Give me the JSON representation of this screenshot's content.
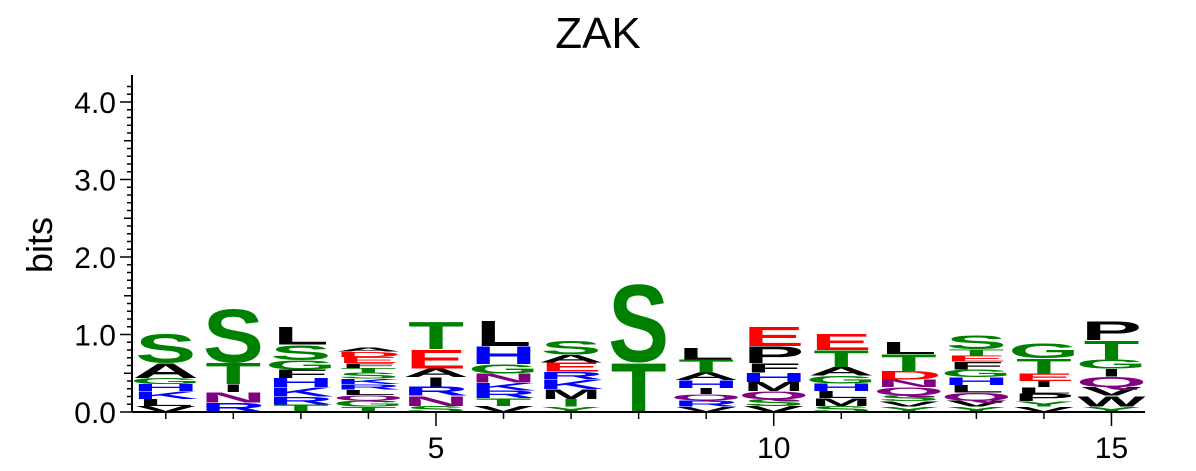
{
  "chart_data": {
    "type": "sequence-logo",
    "title": "ZAK",
    "ylabel": "bits",
    "xlabel": "",
    "ylim": [
      0,
      4.3
    ],
    "xlim": [
      0.5,
      15.5
    ],
    "y_ticks": [
      {
        "value": 0.0,
        "label": "0.0"
      },
      {
        "value": 1.0,
        "label": "1.0"
      },
      {
        "value": 2.0,
        "label": "2.0"
      },
      {
        "value": 3.0,
        "label": "3.0"
      },
      {
        "value": 4.0,
        "label": "4.0"
      }
    ],
    "x_ticks": [
      {
        "value": 5,
        "label": "5"
      },
      {
        "value": 10,
        "label": "10"
      },
      {
        "value": 15,
        "label": "15"
      }
    ],
    "colors": {
      "green": "#008000",
      "black": "#000000",
      "blue": "#0000ff",
      "red": "#ff0000",
      "purple": "#800080"
    },
    "positions": [
      {
        "position": 1,
        "letters": [
          {
            "letter": "V",
            "height": 0.08,
            "color": "black"
          },
          {
            "letter": "L",
            "height": 0.09,
            "color": "black"
          },
          {
            "letter": "K",
            "height": 0.1,
            "color": "blue"
          },
          {
            "letter": "H",
            "height": 0.09,
            "color": "blue"
          },
          {
            "letter": "G",
            "height": 0.08,
            "color": "green"
          },
          {
            "letter": "A",
            "height": 0.2,
            "color": "black"
          },
          {
            "letter": "S",
            "height": 0.38,
            "color": "green"
          }
        ]
      },
      {
        "position": 2,
        "letters": [
          {
            "letter": "R",
            "height": 0.12,
            "color": "blue"
          },
          {
            "letter": "N",
            "height": 0.14,
            "color": "purple"
          },
          {
            "letter": "I",
            "height": 0.1,
            "color": "black"
          },
          {
            "letter": "T",
            "height": 0.28,
            "color": "green"
          },
          {
            "letter": "S",
            "height": 0.7,
            "color": "green"
          }
        ]
      },
      {
        "position": 3,
        "letters": [
          {
            "letter": "T",
            "height": 0.1,
            "color": "green"
          },
          {
            "letter": "R",
            "height": 0.1,
            "color": "blue"
          },
          {
            "letter": "K",
            "height": 0.12,
            "color": "blue"
          },
          {
            "letter": "H",
            "height": 0.12,
            "color": "blue"
          },
          {
            "letter": "F",
            "height": 0.11,
            "color": "black"
          },
          {
            "letter": "G",
            "height": 0.12,
            "color": "green"
          },
          {
            "letter": "S",
            "height": 0.2,
            "color": "green"
          },
          {
            "letter": "L",
            "height": 0.23,
            "color": "black"
          }
        ]
      },
      {
        "position": 4,
        "letters": [
          {
            "letter": "T",
            "height": 0.07,
            "color": "green"
          },
          {
            "letter": "G",
            "height": 0.08,
            "color": "green"
          },
          {
            "letter": "Q",
            "height": 0.07,
            "color": "purple"
          },
          {
            "letter": "L",
            "height": 0.07,
            "color": "black"
          },
          {
            "letter": "R",
            "height": 0.07,
            "color": "blue"
          },
          {
            "letter": "K",
            "height": 0.07,
            "color": "blue"
          },
          {
            "letter": "S",
            "height": 0.08,
            "color": "green"
          },
          {
            "letter": "T",
            "height": 0.06,
            "color": "green"
          },
          {
            "letter": "F",
            "height": 0.06,
            "color": "black"
          },
          {
            "letter": "E",
            "height": 0.08,
            "color": "red"
          },
          {
            "letter": "D",
            "height": 0.07,
            "color": "red"
          },
          {
            "letter": "A",
            "height": 0.05,
            "color": "black"
          }
        ]
      },
      {
        "position": 5,
        "letters": [
          {
            "letter": "S",
            "height": 0.08,
            "color": "green"
          },
          {
            "letter": "N",
            "height": 0.13,
            "color": "purple"
          },
          {
            "letter": "R",
            "height": 0.12,
            "color": "blue"
          },
          {
            "letter": "I",
            "height": 0.12,
            "color": "black"
          },
          {
            "letter": "A",
            "height": 0.11,
            "color": "black"
          },
          {
            "letter": "E",
            "height": 0.25,
            "color": "red"
          },
          {
            "letter": "T",
            "height": 0.36,
            "color": "green"
          }
        ]
      },
      {
        "position": 6,
        "letters": [
          {
            "letter": "V",
            "height": 0.08,
            "color": "black"
          },
          {
            "letter": "T",
            "height": 0.1,
            "color": "green"
          },
          {
            "letter": "R",
            "height": 0.1,
            "color": "blue"
          },
          {
            "letter": "K",
            "height": 0.1,
            "color": "blue"
          },
          {
            "letter": "N",
            "height": 0.12,
            "color": "purple"
          },
          {
            "letter": "G",
            "height": 0.12,
            "color": "green"
          },
          {
            "letter": "H",
            "height": 0.23,
            "color": "blue"
          },
          {
            "letter": "L",
            "height": 0.33,
            "color": "black"
          }
        ]
      },
      {
        "position": 7,
        "letters": [
          {
            "letter": "Y",
            "height": 0.07,
            "color": "green"
          },
          {
            "letter": "I",
            "height": 0.1,
            "color": "green"
          },
          {
            "letter": "M",
            "height": 0.13,
            "color": "black"
          },
          {
            "letter": "K",
            "height": 0.12,
            "color": "blue"
          },
          {
            "letter": "R",
            "height": 0.1,
            "color": "blue"
          },
          {
            "letter": "E",
            "height": 0.12,
            "color": "red"
          },
          {
            "letter": "A",
            "height": 0.1,
            "color": "black"
          },
          {
            "letter": "S",
            "height": 0.18,
            "color": "green"
          }
        ]
      },
      {
        "position": 8,
        "letters": [
          {
            "letter": "T",
            "height": 0.65,
            "color": "green"
          },
          {
            "letter": "S",
            "height": 1.02,
            "color": "green"
          }
        ]
      },
      {
        "position": 9,
        "letters": [
          {
            "letter": "V",
            "height": 0.07,
            "color": "black"
          },
          {
            "letter": "R",
            "height": 0.08,
            "color": "blue"
          },
          {
            "letter": "Q",
            "height": 0.08,
            "color": "purple"
          },
          {
            "letter": "I",
            "height": 0.08,
            "color": "black"
          },
          {
            "letter": "H",
            "height": 0.1,
            "color": "blue"
          },
          {
            "letter": "A",
            "height": 0.1,
            "color": "black"
          },
          {
            "letter": "T",
            "height": 0.17,
            "color": "green"
          },
          {
            "letter": "L",
            "height": 0.15,
            "color": "black"
          }
        ]
      },
      {
        "position": 10,
        "letters": [
          {
            "letter": "V",
            "height": 0.08,
            "color": "black"
          },
          {
            "letter": "S",
            "height": 0.09,
            "color": "green"
          },
          {
            "letter": "Q",
            "height": 0.1,
            "color": "purple"
          },
          {
            "letter": "M",
            "height": 0.12,
            "color": "black"
          },
          {
            "letter": "H",
            "height": 0.12,
            "color": "blue"
          },
          {
            "letter": "F",
            "height": 0.12,
            "color": "black"
          },
          {
            "letter": "P",
            "height": 0.22,
            "color": "black"
          },
          {
            "letter": "E",
            "height": 0.26,
            "color": "red"
          }
        ]
      },
      {
        "position": 11,
        "letters": [
          {
            "letter": "S",
            "height": 0.08,
            "color": "green"
          },
          {
            "letter": "M",
            "height": 0.1,
            "color": "black"
          },
          {
            "letter": "L",
            "height": 0.09,
            "color": "black"
          },
          {
            "letter": "H",
            "height": 0.1,
            "color": "blue"
          },
          {
            "letter": "G",
            "height": 0.1,
            "color": "green"
          },
          {
            "letter": "A",
            "height": 0.11,
            "color": "black"
          },
          {
            "letter": "T",
            "height": 0.22,
            "color": "green"
          },
          {
            "letter": "E",
            "height": 0.21,
            "color": "red"
          }
        ]
      },
      {
        "position": 12,
        "letters": [
          {
            "letter": "Y",
            "height": 0.07,
            "color": "green"
          },
          {
            "letter": "V",
            "height": 0.07,
            "color": "black"
          },
          {
            "letter": "S",
            "height": 0.08,
            "color": "green"
          },
          {
            "letter": "Q",
            "height": 0.1,
            "color": "purple"
          },
          {
            "letter": "N",
            "height": 0.1,
            "color": "purple"
          },
          {
            "letter": "D",
            "height": 0.11,
            "color": "red"
          },
          {
            "letter": "T",
            "height": 0.22,
            "color": "green"
          },
          {
            "letter": "L",
            "height": 0.16,
            "color": "black"
          }
        ]
      },
      {
        "position": 13,
        "letters": [
          {
            "letter": "Y",
            "height": 0.07,
            "color": "green"
          },
          {
            "letter": "V",
            "height": 0.08,
            "color": "black"
          },
          {
            "letter": "Q",
            "height": 0.1,
            "color": "purple"
          },
          {
            "letter": "L",
            "height": 0.1,
            "color": "black"
          },
          {
            "letter": "H",
            "height": 0.1,
            "color": "blue"
          },
          {
            "letter": "G",
            "height": 0.1,
            "color": "green"
          },
          {
            "letter": "F",
            "height": 0.1,
            "color": "black"
          },
          {
            "letter": "E",
            "height": 0.08,
            "color": "red"
          },
          {
            "letter": "T",
            "height": 0.08,
            "color": "green"
          },
          {
            "letter": "S",
            "height": 0.18,
            "color": "green"
          }
        ]
      },
      {
        "position": 14,
        "letters": [
          {
            "letter": "V",
            "height": 0.07,
            "color": "black"
          },
          {
            "letter": "Y",
            "height": 0.07,
            "color": "green"
          },
          {
            "letter": "P",
            "height": 0.1,
            "color": "black"
          },
          {
            "letter": "L",
            "height": 0.08,
            "color": "black"
          },
          {
            "letter": "I",
            "height": 0.08,
            "color": "black"
          },
          {
            "letter": "E",
            "height": 0.1,
            "color": "red"
          },
          {
            "letter": "T",
            "height": 0.2,
            "color": "green"
          },
          {
            "letter": "G",
            "height": 0.2,
            "color": "green"
          }
        ]
      },
      {
        "position": 15,
        "letters": [
          {
            "letter": "Y",
            "height": 0.07,
            "color": "green"
          },
          {
            "letter": "W",
            "height": 0.14,
            "color": "black"
          },
          {
            "letter": "V",
            "height": 0.11,
            "color": "black"
          },
          {
            "letter": "Q",
            "height": 0.14,
            "color": "purple"
          },
          {
            "letter": "I",
            "height": 0.1,
            "color": "black"
          },
          {
            "letter": "G",
            "height": 0.12,
            "color": "green"
          },
          {
            "letter": "T",
            "height": 0.25,
            "color": "green"
          },
          {
            "letter": "P",
            "height": 0.25,
            "color": "black"
          }
        ]
      }
    ]
  }
}
